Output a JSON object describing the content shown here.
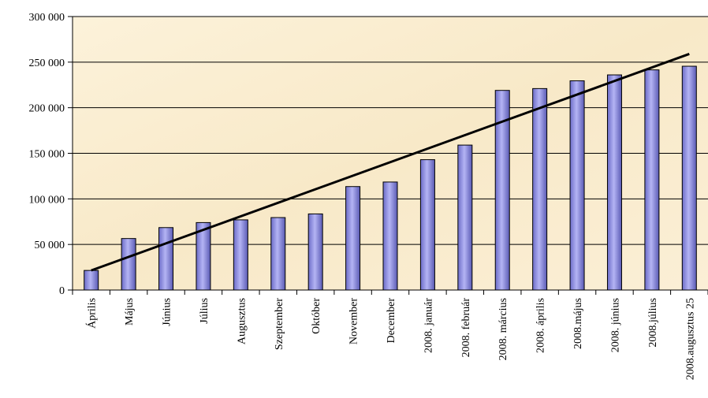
{
  "chart_data": {
    "type": "bar",
    "categories": [
      "Április",
      "Május",
      "Június",
      "Július",
      "Augusztus",
      "Szeptember",
      "Október",
      "November",
      "December",
      "2008. január",
      "2008. február",
      "2008. március",
      "2008. április",
      "2008.május",
      "2008. június",
      "2008.július",
      "2008.augusztus 25"
    ],
    "values": [
      21500,
      56500,
      68500,
      74000,
      77000,
      79500,
      83500,
      113500,
      118500,
      143000,
      159000,
      219000,
      221000,
      229500,
      236000,
      241500,
      245500
    ],
    "y_ticks": [
      "0",
      "50 000",
      "100 000",
      "150 000",
      "200 000",
      "250 000",
      "300 000"
    ],
    "ylim": [
      0,
      300000
    ],
    "trendline": {
      "start": 21500,
      "end": 259000
    },
    "grid": "horizontal",
    "colors": {
      "bar_fill": "#8f8fe0",
      "bar_stroke": "#000000",
      "trendline": "#000000",
      "plot_background": "#fbefd3",
      "gridline": "#000000"
    }
  }
}
